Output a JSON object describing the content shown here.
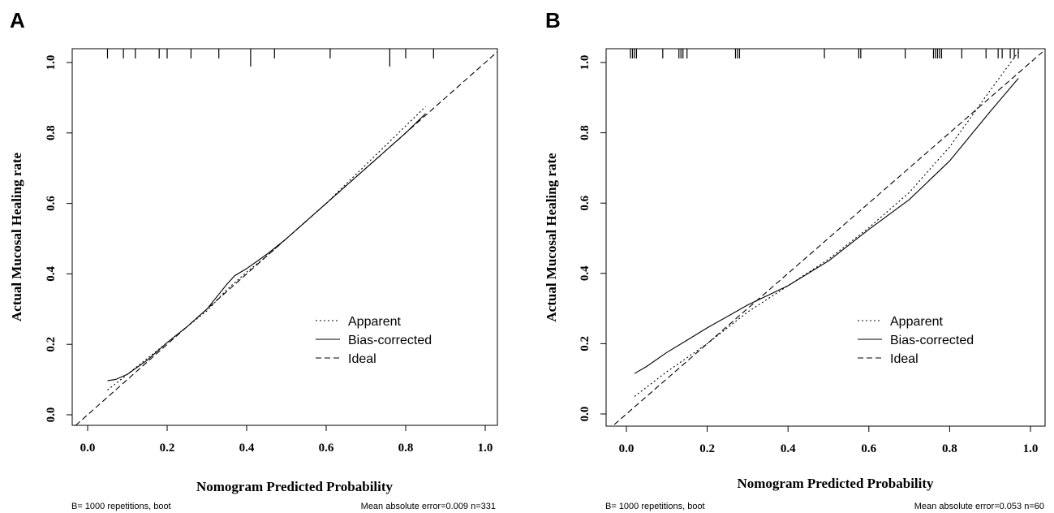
{
  "chart_data": [
    {
      "type": "line",
      "panel_label": "A",
      "xlabel": "Nomogram Predicted Probability",
      "ylabel": "Actual Mucosal Healing rate",
      "xlim": [
        -0.04,
        1.04
      ],
      "ylim": [
        -0.03,
        1.04
      ],
      "xticks": [
        "0.0",
        "0.2",
        "0.4",
        "0.6",
        "0.8",
        "1.0"
      ],
      "yticks": [
        "0.0",
        "0.2",
        "0.4",
        "0.6",
        "0.8",
        "1.0"
      ],
      "grid": false,
      "legend_position": "bottom-right",
      "legend": [
        "Apparent",
        "Bias-corrected",
        "Ideal"
      ],
      "series": [
        {
          "name": "Apparent",
          "style": "dotted",
          "x": [
            0.05,
            0.1,
            0.15,
            0.2,
            0.25,
            0.3,
            0.35,
            0.4,
            0.45,
            0.5,
            0.55,
            0.6,
            0.65,
            0.7,
            0.75,
            0.8,
            0.85
          ],
          "y": [
            0.07,
            0.115,
            0.16,
            0.205,
            0.25,
            0.295,
            0.355,
            0.405,
            0.45,
            0.5,
            0.55,
            0.6,
            0.655,
            0.71,
            0.765,
            0.82,
            0.875
          ]
        },
        {
          "name": "Bias-corrected",
          "style": "solid",
          "x": [
            0.05,
            0.07,
            0.1,
            0.15,
            0.2,
            0.25,
            0.3,
            0.35,
            0.37,
            0.4,
            0.45,
            0.5,
            0.55,
            0.6,
            0.65,
            0.7,
            0.75,
            0.8,
            0.85
          ],
          "y": [
            0.097,
            0.1,
            0.115,
            0.155,
            0.205,
            0.25,
            0.3,
            0.37,
            0.395,
            0.415,
            0.455,
            0.5,
            0.55,
            0.6,
            0.65,
            0.7,
            0.75,
            0.8,
            0.855
          ]
        },
        {
          "name": "Ideal",
          "style": "dashed",
          "x": [
            -0.03,
            1.03
          ],
          "y": [
            -0.03,
            1.03
          ]
        }
      ],
      "rug_ticks": [
        0.05,
        0.09,
        0.12,
        0.18,
        0.2,
        0.26,
        0.33,
        0.41,
        0.47,
        0.61,
        0.76,
        0.8,
        0.87
      ],
      "footnote_left": "B= 1000 repetitions, boot",
      "footnote_right": "Mean absolute error=0.009 n=331"
    },
    {
      "type": "line",
      "panel_label": "B",
      "xlabel": "Nomogram Predicted Probability",
      "ylabel": "Actual Mucosal Healing rate",
      "xlim": [
        -0.04,
        1.04
      ],
      "ylim": [
        -0.03,
        1.04
      ],
      "xticks": [
        "0.0",
        "0.2",
        "0.4",
        "0.6",
        "0.8",
        "1.0"
      ],
      "yticks": [
        "0.0",
        "0.2",
        "0.4",
        "0.6",
        "0.8",
        "1.0"
      ],
      "grid": false,
      "legend_position": "bottom-right",
      "legend": [
        "Apparent",
        "Bias-corrected",
        "Ideal"
      ],
      "series": [
        {
          "name": "Apparent",
          "style": "dotted",
          "x": [
            0.02,
            0.1,
            0.2,
            0.3,
            0.4,
            0.5,
            0.6,
            0.7,
            0.8,
            0.9,
            0.97
          ],
          "y": [
            0.05,
            0.12,
            0.2,
            0.29,
            0.365,
            0.44,
            0.53,
            0.63,
            0.76,
            0.92,
            1.03
          ]
        },
        {
          "name": "Bias-corrected",
          "style": "solid",
          "x": [
            0.02,
            0.05,
            0.1,
            0.15,
            0.2,
            0.3,
            0.4,
            0.5,
            0.6,
            0.7,
            0.8,
            0.9,
            0.97
          ],
          "y": [
            0.115,
            0.135,
            0.175,
            0.21,
            0.245,
            0.31,
            0.365,
            0.435,
            0.525,
            0.61,
            0.72,
            0.86,
            0.955
          ]
        },
        {
          "name": "Ideal",
          "style": "dashed",
          "x": [
            -0.03,
            1.03
          ],
          "y": [
            -0.03,
            1.03
          ]
        }
      ],
      "rug_ticks": [
        0.01,
        0.015,
        0.02,
        0.025,
        0.09,
        0.13,
        0.135,
        0.14,
        0.15,
        0.27,
        0.275,
        0.28,
        0.49,
        0.575,
        0.58,
        0.69,
        0.76,
        0.765,
        0.77,
        0.775,
        0.78,
        0.83,
        0.89,
        0.92,
        0.93,
        0.95,
        0.96,
        0.97
      ],
      "footnote_left": "B= 1000 repetitions, boot",
      "footnote_right": "Mean absolute error=0.053 n=60"
    }
  ]
}
